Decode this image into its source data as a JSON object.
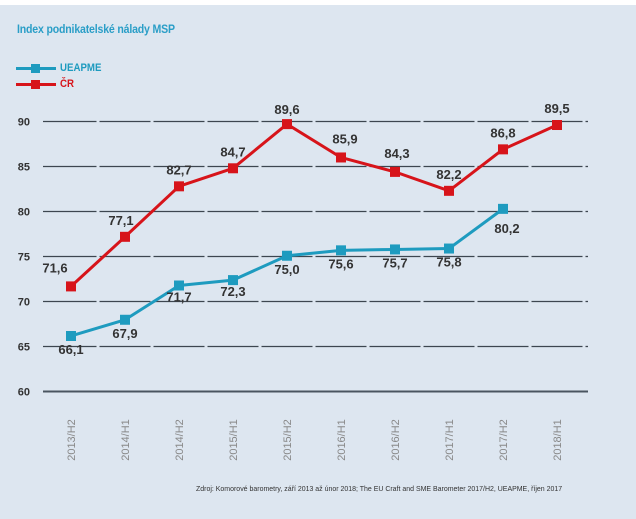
{
  "chart_data": {
    "type": "line",
    "title": "Index podnikatelské nálady MSP",
    "categories": [
      "2013/H2",
      "2014/H1",
      "2014/H2",
      "2015/H1",
      "2015/H2",
      "2016/H1",
      "2016/H2",
      "2017/H1",
      "2017/H2",
      "2018/H1"
    ],
    "series": [
      {
        "name": "UEAPME",
        "color": "#1e9bbf",
        "values": [
          66.1,
          67.9,
          71.7,
          72.3,
          75.0,
          75.6,
          75.7,
          75.8,
          80.2,
          null
        ],
        "labels": [
          "66,1",
          "67,9",
          "71,7",
          "72,3",
          "75,0",
          "75,6",
          "75,7",
          "75,8",
          "80,2",
          null
        ]
      },
      {
        "name": "ČR",
        "color": "#d7141a",
        "values": [
          71.6,
          77.1,
          82.7,
          84.7,
          89.6,
          85.9,
          84.3,
          82.2,
          86.8,
          89.5
        ],
        "labels": [
          "71,6",
          "77,1",
          "82,7",
          "84,7",
          "89,6",
          "85,9",
          "84,3",
          "82,2",
          "86,8",
          "89,5"
        ]
      }
    ],
    "yticks": [
      60,
      65,
      70,
      75,
      80,
      85,
      90
    ],
    "ylim": [
      60,
      90
    ],
    "xlabel": "",
    "ylabel": "",
    "grid": true,
    "legend": "top-left",
    "source": "Zdroj: Komorové barometry, září 2013 až únor 2018; The EU Craft and SME Barometer 2017/H2, UEAPME, říjen 2017"
  }
}
